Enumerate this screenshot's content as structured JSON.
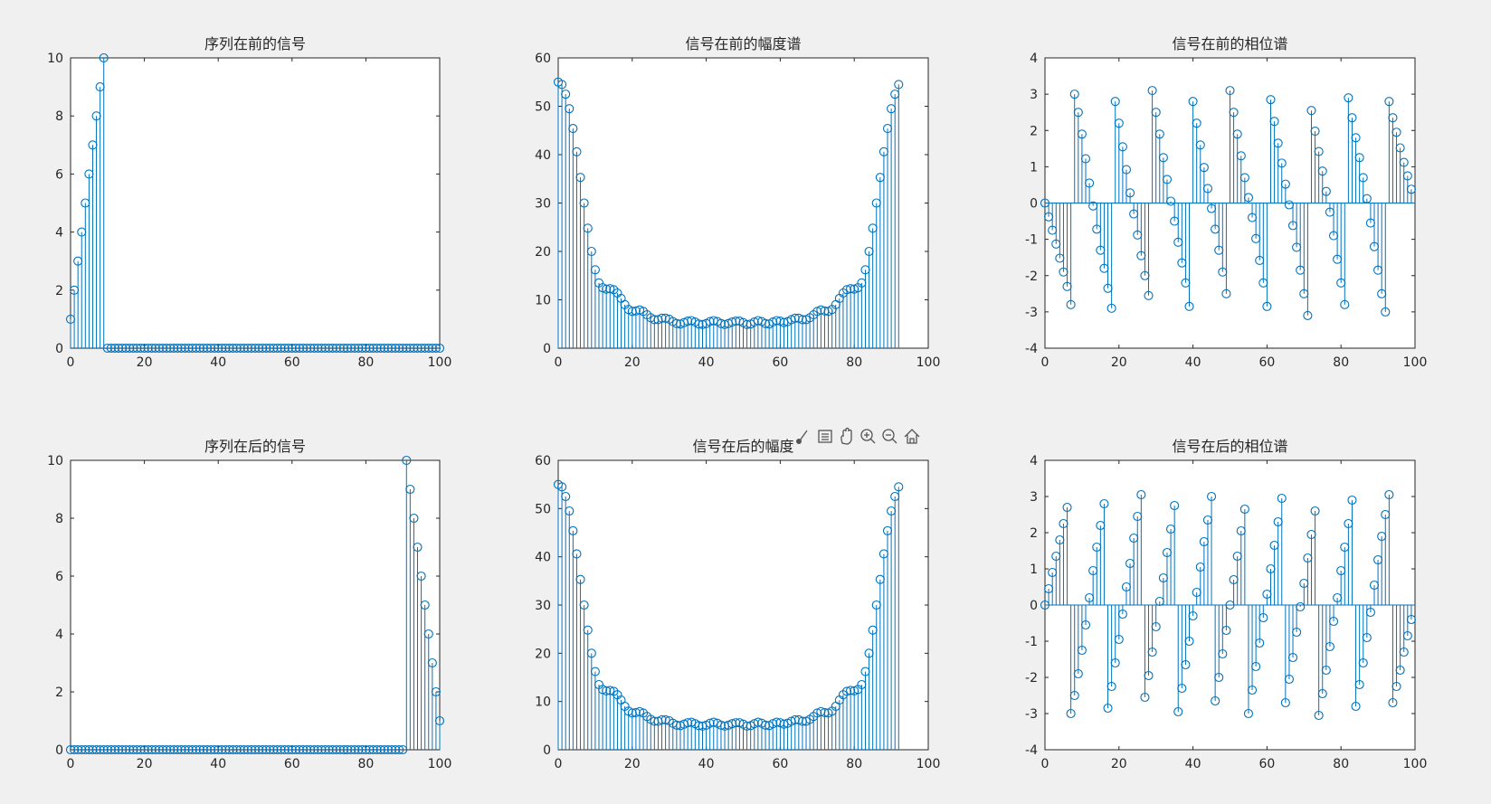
{
  "chart_data": [
    {
      "type": "stem",
      "title": "序列在前的信号",
      "xlim": [
        0,
        100
      ],
      "ylim": [
        0,
        10
      ],
      "xticks": [
        0,
        20,
        40,
        60,
        80,
        100
      ],
      "yticks": [
        0,
        2,
        4,
        6,
        8,
        10
      ],
      "series": [
        {
          "color": "#0072bd",
          "n": [
            0,
            1,
            2,
            3,
            4,
            5,
            6,
            7,
            8,
            9,
            10,
            11,
            12,
            13,
            14,
            15,
            16,
            17,
            18,
            19,
            20,
            21,
            22,
            23,
            24,
            25,
            26,
            27,
            28,
            29,
            30,
            31,
            32,
            33,
            34,
            35,
            36,
            37,
            38,
            39,
            40,
            41,
            42,
            43,
            44,
            45,
            46,
            47,
            48,
            49,
            50,
            51,
            52,
            53,
            54,
            55,
            56,
            57,
            58,
            59,
            60,
            61,
            62,
            63,
            64,
            65,
            66,
            67,
            68,
            69,
            70,
            71,
            72,
            73,
            74,
            75,
            76,
            77,
            78,
            79,
            80,
            81,
            82,
            83,
            84,
            85,
            86,
            87,
            88,
            89,
            90,
            91,
            92,
            93,
            94,
            95,
            96,
            97,
            98,
            99,
            100
          ],
          "values": [
            1,
            2,
            3,
            4,
            5,
            6,
            7,
            8,
            9,
            10,
            0,
            0,
            0,
            0,
            0,
            0,
            0,
            0,
            0,
            0,
            0,
            0,
            0,
            0,
            0,
            0,
            0,
            0,
            0,
            0,
            0,
            0,
            0,
            0,
            0,
            0,
            0,
            0,
            0,
            0,
            0,
            0,
            0,
            0,
            0,
            0,
            0,
            0,
            0,
            0,
            0,
            0,
            0,
            0,
            0,
            0,
            0,
            0,
            0,
            0,
            0,
            0,
            0,
            0,
            0,
            0,
            0,
            0,
            0,
            0,
            0,
            0,
            0,
            0,
            0,
            0,
            0,
            0,
            0,
            0,
            0,
            0,
            0,
            0,
            0,
            0,
            0,
            0,
            0,
            0,
            0,
            0,
            0,
            0,
            0,
            0,
            0,
            0,
            0,
            0,
            0
          ]
        }
      ]
    },
    {
      "type": "stem",
      "title": "信号在前的幅度谱",
      "xlim": [
        0,
        100
      ],
      "ylim": [
        0,
        60
      ],
      "xticks": [
        0,
        20,
        40,
        60,
        80,
        100
      ],
      "yticks": [
        0,
        10,
        20,
        30,
        40,
        50,
        60
      ],
      "series": [
        {
          "color": "#0072bd",
          "values": [
            55,
            54.5,
            52.5,
            49.5,
            45.4,
            40.6,
            35.3,
            30,
            24.8,
            20,
            16.2,
            13.5,
            12.5,
            12.2,
            12.3,
            12.1,
            11.4,
            10.3,
            9,
            8,
            7.6,
            7.7,
            7.9,
            7.6,
            6.9,
            6.3,
            5.9,
            5.9,
            6.2,
            6.2,
            6,
            5.5,
            5.1,
            5,
            5.3,
            5.6,
            5.7,
            5.4,
            5,
            4.9,
            5.1,
            5.5,
            5.7,
            5.5,
            5.1,
            4.9,
            5.1,
            5.4,
            5.6,
            5.6,
            5.3,
            4.9,
            5,
            5.4,
            5.7,
            5.5,
            5.1,
            5,
            5.4,
            5.7,
            5.6,
            5.3,
            5.5,
            5.9,
            6.2,
            6.2,
            5.9,
            5.9,
            6.3,
            6.9,
            7.6,
            7.9,
            7.7,
            7.6,
            8,
            9,
            10.3,
            11.4,
            12.1,
            12.3,
            12.2,
            12.5,
            13.5,
            16.2,
            20,
            24.8,
            30,
            35.3,
            40.6,
            45.4,
            49.5,
            52.5,
            54.5
          ]
        }
      ]
    },
    {
      "type": "stem",
      "title": "信号在前的相位谱",
      "xlim": [
        0,
        100
      ],
      "ylim": [
        -4,
        4
      ],
      "xticks": [
        0,
        20,
        40,
        60,
        80,
        100
      ],
      "yticks": [
        -4,
        -3,
        -2,
        -1,
        0,
        1,
        2,
        3,
        4
      ],
      "series": [
        {
          "color": "#0072bd",
          "values": [
            0,
            -0.38,
            -0.75,
            -1.13,
            -1.52,
            -1.9,
            -2.3,
            -2.8,
            3.0,
            2.5,
            1.9,
            1.22,
            0.55,
            -0.08,
            -0.72,
            -1.3,
            -1.8,
            -2.35,
            -2.9,
            2.8,
            2.2,
            1.55,
            0.92,
            0.28,
            -0.3,
            -0.88,
            -1.45,
            -2.0,
            -2.55,
            3.1,
            2.5,
            1.9,
            1.25,
            0.65,
            0.05,
            -0.5,
            -1.08,
            -1.65,
            -2.2,
            -2.85,
            2.8,
            2.2,
            1.6,
            0.98,
            0.4,
            -0.15,
            -0.72,
            -1.3,
            -1.9,
            -2.5,
            3.1,
            2.5,
            1.9,
            1.3,
            0.7,
            0.15,
            -0.4,
            -0.98,
            -1.58,
            -2.2,
            -2.85,
            2.85,
            2.25,
            1.65,
            1.1,
            0.52,
            -0.05,
            -0.62,
            -1.22,
            -1.85,
            -2.5,
            -3.1,
            2.55,
            1.98,
            1.42,
            0.88,
            0.32,
            -0.25,
            -0.9,
            -1.55,
            -2.2,
            -2.8,
            2.9,
            2.35,
            1.8,
            1.25,
            0.7,
            0.12,
            -0.55,
            -1.2,
            -1.85,
            -2.5,
            -3.0,
            2.8,
            2.35,
            1.95,
            1.52,
            1.12,
            0.75,
            0.38
          ]
        }
      ]
    },
    {
      "type": "stem",
      "title": "序列在后的信号",
      "xlim": [
        0,
        100
      ],
      "ylim": [
        0,
        10
      ],
      "xticks": [
        0,
        20,
        40,
        60,
        80,
        100
      ],
      "yticks": [
        0,
        2,
        4,
        6,
        8,
        10
      ],
      "series": [
        {
          "color": "#0072bd",
          "values": [
            0,
            0,
            0,
            0,
            0,
            0,
            0,
            0,
            0,
            0,
            0,
            0,
            0,
            0,
            0,
            0,
            0,
            0,
            0,
            0,
            0,
            0,
            0,
            0,
            0,
            0,
            0,
            0,
            0,
            0,
            0,
            0,
            0,
            0,
            0,
            0,
            0,
            0,
            0,
            0,
            0,
            0,
            0,
            0,
            0,
            0,
            0,
            0,
            0,
            0,
            0,
            0,
            0,
            0,
            0,
            0,
            0,
            0,
            0,
            0,
            0,
            0,
            0,
            0,
            0,
            0,
            0,
            0,
            0,
            0,
            0,
            0,
            0,
            0,
            0,
            0,
            0,
            0,
            0,
            0,
            0,
            0,
            0,
            0,
            0,
            0,
            0,
            0,
            0,
            0,
            0,
            10,
            9,
            8,
            7,
            6,
            5,
            4,
            3,
            2,
            1
          ]
        }
      ]
    },
    {
      "type": "stem",
      "title": "信号在后的幅度",
      "xlim": [
        0,
        100
      ],
      "ylim": [
        0,
        60
      ],
      "xticks": [
        0,
        20,
        40,
        60,
        80,
        100
      ],
      "yticks": [
        0,
        10,
        20,
        30,
        40,
        50,
        60
      ],
      "series": [
        {
          "color": "#0072bd",
          "values": [
            55,
            54.5,
            52.5,
            49.5,
            45.4,
            40.6,
            35.3,
            30,
            24.8,
            20,
            16.2,
            13.5,
            12.5,
            12.2,
            12.3,
            12.1,
            11.4,
            10.3,
            9,
            8,
            7.6,
            7.7,
            7.9,
            7.6,
            6.9,
            6.3,
            5.9,
            5.9,
            6.2,
            6.2,
            6,
            5.5,
            5.1,
            5,
            5.3,
            5.6,
            5.7,
            5.4,
            5,
            4.9,
            5.1,
            5.5,
            5.7,
            5.5,
            5.1,
            4.9,
            5.1,
            5.4,
            5.6,
            5.6,
            5.3,
            4.9,
            5,
            5.4,
            5.7,
            5.5,
            5.1,
            5,
            5.4,
            5.7,
            5.6,
            5.3,
            5.5,
            5.9,
            6.2,
            6.2,
            5.9,
            5.9,
            6.3,
            6.9,
            7.6,
            7.9,
            7.7,
            7.6,
            8,
            9,
            10.3,
            11.4,
            12.1,
            12.3,
            12.2,
            12.5,
            13.5,
            16.2,
            20,
            24.8,
            30,
            35.3,
            40.6,
            45.4,
            49.5,
            52.5,
            54.5
          ]
        }
      ]
    },
    {
      "type": "stem",
      "title": "信号在后的相位谱",
      "xlim": [
        0,
        100
      ],
      "ylim": [
        -4,
        4
      ],
      "xticks": [
        0,
        20,
        40,
        60,
        80,
        100
      ],
      "yticks": [
        -4,
        -3,
        -2,
        -1,
        0,
        1,
        2,
        3,
        4
      ],
      "series": [
        {
          "color": "#0072bd",
          "values": [
            0,
            0.45,
            0.9,
            1.35,
            1.8,
            2.25,
            2.7,
            -3.0,
            -2.5,
            -1.9,
            -1.25,
            -0.55,
            0.2,
            0.95,
            1.6,
            2.2,
            2.8,
            -2.85,
            -2.25,
            -1.6,
            -0.95,
            -0.25,
            0.5,
            1.15,
            1.85,
            2.45,
            3.05,
            -2.55,
            -1.95,
            -1.3,
            -0.6,
            0.1,
            0.75,
            1.45,
            2.1,
            2.75,
            -2.95,
            -2.3,
            -1.65,
            -1.0,
            -0.3,
            0.35,
            1.05,
            1.75,
            2.35,
            3.0,
            -2.65,
            -2.0,
            -1.35,
            -0.7,
            0.0,
            0.7,
            1.35,
            2.05,
            2.65,
            -3.0,
            -2.35,
            -1.7,
            -1.05,
            -0.35,
            0.3,
            1.0,
            1.65,
            2.3,
            2.95,
            -2.7,
            -2.05,
            -1.45,
            -0.75,
            -0.05,
            0.6,
            1.3,
            1.95,
            2.6,
            -3.05,
            -2.45,
            -1.8,
            -1.15,
            -0.45,
            0.2,
            0.95,
            1.6,
            2.25,
            2.9,
            -2.8,
            -2.2,
            -1.6,
            -0.9,
            -0.2,
            0.55,
            1.25,
            1.9,
            2.5,
            3.05,
            -2.7,
            -2.25,
            -1.8,
            -1.3,
            -0.85,
            -0.4
          ]
        }
      ]
    }
  ],
  "toolbar": {
    "icons": [
      "brush-icon",
      "legend-icon",
      "pan-hand-icon",
      "zoom-in-icon",
      "zoom-out-icon",
      "home-icon"
    ]
  }
}
